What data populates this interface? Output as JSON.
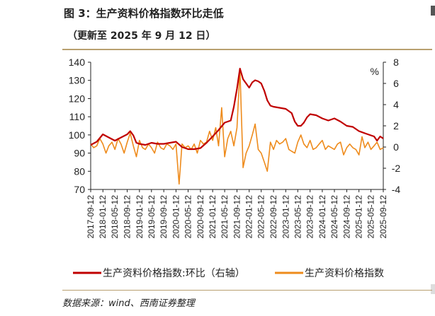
{
  "header": {
    "title": "图 3：生产资料价格指数环比走低",
    "subtitle": "（更新至 2025 年 9 月 12 日）"
  },
  "footer": {
    "source": "数据来源：wind、西南证券整理"
  },
  "chart_data": {
    "type": "line",
    "y_left": {
      "ylim": [
        70,
        140
      ],
      "ticks": [
        70,
        80,
        90,
        100,
        110,
        120,
        130,
        140
      ]
    },
    "y_right": {
      "ylim": [
        -4,
        8
      ],
      "ticks": [
        -4,
        -2,
        0,
        2,
        4,
        6,
        8
      ],
      "unit": "%"
    },
    "x_tick_labels": [
      "2017-09-12",
      "2018-01-12",
      "2018-05-12",
      "2018-09-12",
      "2019-01-12",
      "2019-05-12",
      "2019-09-12",
      "2020-01-12",
      "2020-05-12",
      "2020-09-12",
      "2021-01-12",
      "2021-05-12",
      "2021-09-12",
      "2022-01-12",
      "2022-05-12",
      "2022-09-12",
      "2023-01-12",
      "2023-05-12",
      "2023-09-12",
      "2024-01-12",
      "2024-05-12",
      "2024-09-12",
      "2025-01-12",
      "2025-05-12",
      "2025-09-12"
    ],
    "legend_position": "bottom",
    "series": [
      {
        "name": "生产资料价格指数:环比（右轴）",
        "axis": "right",
        "color": "#c00000",
        "points": [
          [
            "2017-09-12",
            0.2
          ],
          [
            "2017-11-12",
            0.5
          ],
          [
            "2018-01-12",
            1.2
          ],
          [
            "2018-03-12",
            0.9
          ],
          [
            "2018-05-12",
            0.6
          ],
          [
            "2018-07-12",
            0.9
          ],
          [
            "2018-09-12",
            1.2
          ],
          [
            "2018-10-12",
            1.5
          ],
          [
            "2018-11-12",
            1.1
          ],
          [
            "2018-12-12",
            0.4
          ],
          [
            "2019-01-12",
            0.3
          ],
          [
            "2019-03-12",
            0.2
          ],
          [
            "2019-05-12",
            0.4
          ],
          [
            "2019-07-12",
            0.3
          ],
          [
            "2019-09-12",
            0.3
          ],
          [
            "2019-11-12",
            0.4
          ],
          [
            "2020-01-12",
            0.5
          ],
          [
            "2020-03-12",
            0.0
          ],
          [
            "2020-05-12",
            -0.2
          ],
          [
            "2020-07-12",
            -0.2
          ],
          [
            "2020-09-12",
            -0.1
          ],
          [
            "2020-11-12",
            0.4
          ],
          [
            "2021-01-12",
            1.0
          ],
          [
            "2021-03-12",
            1.6
          ],
          [
            "2021-05-12",
            2.3
          ],
          [
            "2021-07-12",
            2.5
          ],
          [
            "2021-08-12",
            3.8
          ],
          [
            "2021-09-12",
            5.5
          ],
          [
            "2021-10-12",
            7.4
          ],
          [
            "2021-11-12",
            6.4
          ],
          [
            "2021-12-12",
            6.0
          ],
          [
            "2022-01-12",
            5.6
          ],
          [
            "2022-02-12",
            6.1
          ],
          [
            "2022-03-12",
            6.3
          ],
          [
            "2022-04-12",
            6.2
          ],
          [
            "2022-05-12",
            6.0
          ],
          [
            "2022-06-12",
            5.3
          ],
          [
            "2022-07-12",
            4.4
          ],
          [
            "2022-08-12",
            3.9
          ],
          [
            "2022-09-12",
            3.8
          ],
          [
            "2022-11-12",
            3.7
          ],
          [
            "2023-01-12",
            3.6
          ],
          [
            "2023-03-12",
            3.2
          ],
          [
            "2023-04-12",
            2.4
          ],
          [
            "2023-05-12",
            2.0
          ],
          [
            "2023-06-12",
            2.0
          ],
          [
            "2023-07-12",
            2.3
          ],
          [
            "2023-08-12",
            2.8
          ],
          [
            "2023-09-12",
            3.1
          ],
          [
            "2023-11-12",
            3.0
          ],
          [
            "2024-01-12",
            2.7
          ],
          [
            "2024-03-12",
            2.5
          ],
          [
            "2024-05-12",
            2.7
          ],
          [
            "2024-07-12",
            2.4
          ],
          [
            "2024-09-12",
            2.0
          ],
          [
            "2024-11-12",
            1.9
          ],
          [
            "2025-01-12",
            1.5
          ],
          [
            "2025-03-12",
            1.3
          ],
          [
            "2025-05-12",
            1.1
          ],
          [
            "2025-06-12",
            1.0
          ],
          [
            "2025-07-12",
            0.6
          ],
          [
            "2025-08-12",
            1.0
          ],
          [
            "2025-09-12",
            0.8
          ]
        ]
      },
      {
        "name": "生产资料价格指数",
        "axis": "left",
        "color": "#ee8b1c",
        "points": [
          [
            "2017-09-12",
            95
          ],
          [
            "2017-10-12",
            93
          ],
          [
            "2017-11-12",
            94
          ],
          [
            "2017-12-12",
            98
          ],
          [
            "2018-01-12",
            95
          ],
          [
            "2018-02-12",
            90
          ],
          [
            "2018-03-12",
            94
          ],
          [
            "2018-04-12",
            96
          ],
          [
            "2018-05-12",
            92
          ],
          [
            "2018-06-12",
            98
          ],
          [
            "2018-07-12",
            95
          ],
          [
            "2018-08-12",
            90
          ],
          [
            "2018-09-12",
            96
          ],
          [
            "2018-10-12",
            101
          ],
          [
            "2018-11-12",
            94
          ],
          [
            "2018-12-12",
            88
          ],
          [
            "2019-01-12",
            97
          ],
          [
            "2019-02-12",
            93
          ],
          [
            "2019-03-12",
            92
          ],
          [
            "2019-04-12",
            95
          ],
          [
            "2019-05-12",
            93
          ],
          [
            "2019-06-12",
            90
          ],
          [
            "2019-07-12",
            96
          ],
          [
            "2019-08-12",
            93
          ],
          [
            "2019-09-12",
            92
          ],
          [
            "2019-10-12",
            95
          ],
          [
            "2019-11-12",
            94
          ],
          [
            "2019-12-12",
            92
          ],
          [
            "2020-01-12",
            95
          ],
          [
            "2020-02-12",
            73
          ],
          [
            "2020-03-12",
            95
          ],
          [
            "2020-04-12",
            93
          ],
          [
            "2020-05-12",
            94
          ],
          [
            "2020-06-12",
            92
          ],
          [
            "2020-07-12",
            95
          ],
          [
            "2020-08-12",
            90
          ],
          [
            "2020-09-12",
            97
          ],
          [
            "2020-10-12",
            95
          ],
          [
            "2020-11-12",
            96
          ],
          [
            "2020-12-12",
            102
          ],
          [
            "2021-01-12",
            97
          ],
          [
            "2021-02-12",
            104
          ],
          [
            "2021-03-12",
            94
          ],
          [
            "2021-04-12",
            115
          ],
          [
            "2021-05-12",
            88
          ],
          [
            "2021-06-12",
            98
          ],
          [
            "2021-07-12",
            102
          ],
          [
            "2021-08-12",
            94
          ],
          [
            "2021-09-12",
            104
          ],
          [
            "2021-10-12",
            136
          ],
          [
            "2021-11-12",
            82
          ],
          [
            "2021-12-12",
            90
          ],
          [
            "2022-01-12",
            94
          ],
          [
            "2022-02-12",
            100
          ],
          [
            "2022-03-12",
            106
          ],
          [
            "2022-04-12",
            92
          ],
          [
            "2022-05-12",
            90
          ],
          [
            "2022-06-12",
            85
          ],
          [
            "2022-07-12",
            80
          ],
          [
            "2022-08-12",
            96
          ],
          [
            "2022-09-12",
            92
          ],
          [
            "2022-10-12",
            97
          ],
          [
            "2022-11-12",
            95
          ],
          [
            "2022-12-12",
            96
          ],
          [
            "2023-01-12",
            98
          ],
          [
            "2023-02-12",
            92
          ],
          [
            "2023-03-12",
            91
          ],
          [
            "2023-04-12",
            90
          ],
          [
            "2023-05-12",
            96
          ],
          [
            "2023-06-12",
            100
          ],
          [
            "2023-07-12",
            95
          ],
          [
            "2023-08-12",
            93
          ],
          [
            "2023-09-12",
            97
          ],
          [
            "2023-10-12",
            92
          ],
          [
            "2023-11-12",
            93
          ],
          [
            "2023-12-12",
            95
          ],
          [
            "2024-01-12",
            97
          ],
          [
            "2024-02-12",
            92
          ],
          [
            "2024-03-12",
            94
          ],
          [
            "2024-04-12",
            93
          ],
          [
            "2024-05-12",
            92
          ],
          [
            "2024-06-12",
            95
          ],
          [
            "2024-07-12",
            96
          ],
          [
            "2024-08-12",
            89
          ],
          [
            "2024-09-12",
            93
          ],
          [
            "2024-10-12",
            95
          ],
          [
            "2024-11-12",
            93
          ],
          [
            "2024-12-12",
            92
          ],
          [
            "2025-01-12",
            89
          ],
          [
            "2025-02-12",
            99
          ],
          [
            "2025-03-12",
            93
          ],
          [
            "2025-04-12",
            96
          ],
          [
            "2025-05-12",
            92
          ],
          [
            "2025-06-12",
            94
          ],
          [
            "2025-07-12",
            96
          ],
          [
            "2025-08-12",
            92
          ],
          [
            "2025-09-12",
            93
          ]
        ]
      }
    ]
  }
}
